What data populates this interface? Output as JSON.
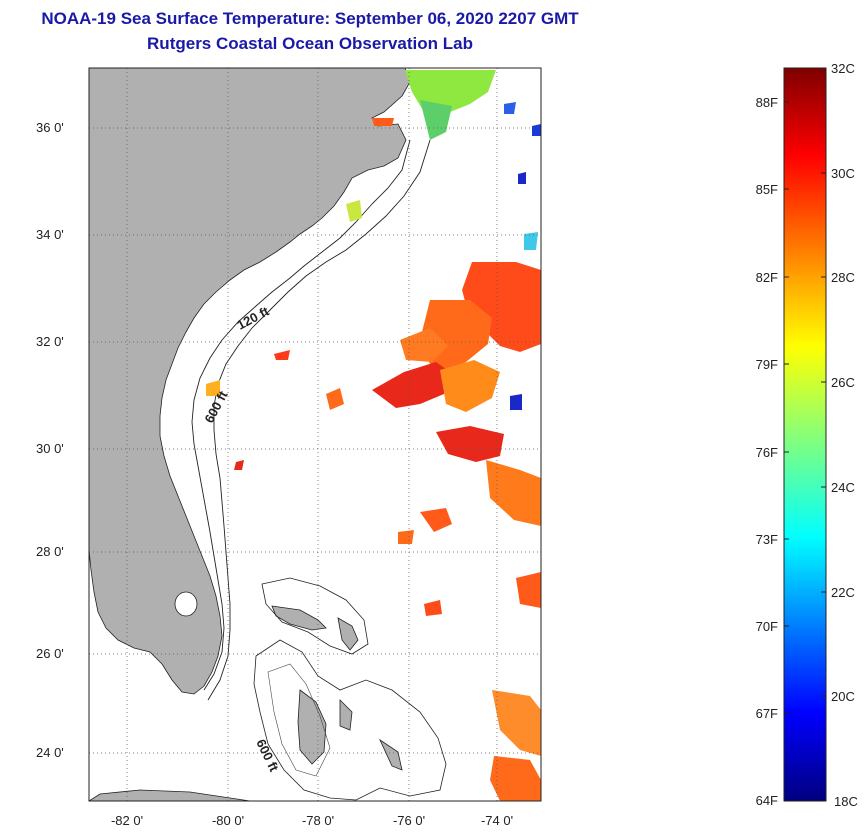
{
  "header": {
    "title": "NOAA-19 Sea Surface Temperature:  September 06, 2020 2207 GMT",
    "subtitle": "Rutgers Coastal Ocean Observation Lab"
  },
  "map": {
    "lat_labels": [
      "36 0'",
      "34 0'",
      "32 0'",
      "30 0'",
      "28 0'",
      "26 0'",
      "24 0'"
    ],
    "lon_labels": [
      "-82 0'",
      "-80 0'",
      "-78 0'",
      "-76 0'",
      "-74 0'"
    ],
    "contour_labels": {
      "shelf_120": "120 ft",
      "shelf_600_north": "600 ft",
      "shelf_600_south": "600 ft"
    },
    "colors": {
      "land": "#b0b0b0",
      "water": "#ffffff",
      "grid": "#555555"
    }
  },
  "colorbar": {
    "fahrenheit_labels": [
      "88F",
      "85F",
      "82F",
      "79F",
      "76F",
      "73F",
      "70F",
      "67F",
      "64F"
    ],
    "celsius_labels": [
      "32C",
      "30C",
      "28C",
      "26C",
      "24C",
      "22C",
      "20C",
      "18C"
    ],
    "range_c": [
      18,
      32
    ],
    "colormap": "jet"
  }
}
